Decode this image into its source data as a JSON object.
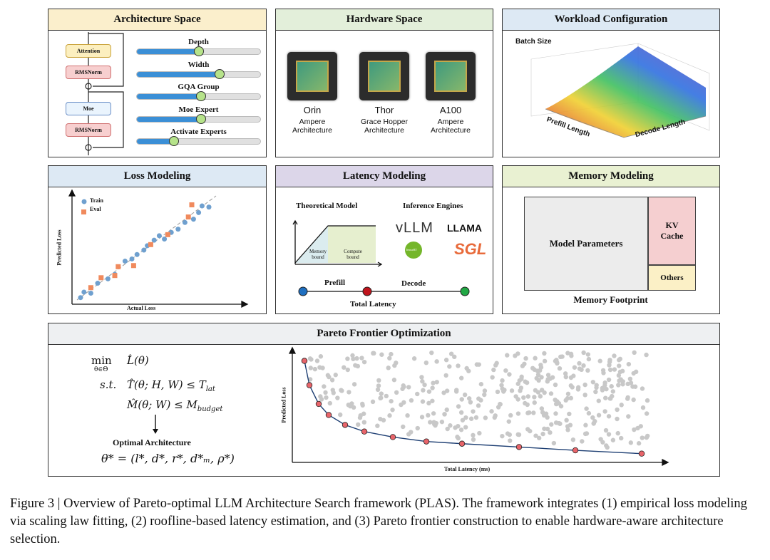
{
  "panels": {
    "architecture": {
      "title": "Architecture Space",
      "blocks": [
        "Attention",
        "RMSNorm",
        "Moe",
        "RMSNorm"
      ],
      "sliders": [
        {
          "label": "Depth",
          "value": 0.5
        },
        {
          "label": "Width",
          "value": 0.67
        },
        {
          "label": "GQA Group",
          "value": 0.52
        },
        {
          "label": "Moe Expert",
          "value": 0.52
        },
        {
          "label": "Activate Experts",
          "value": 0.3
        }
      ]
    },
    "hardware": {
      "title": "Hardware Space",
      "chips": [
        {
          "name": "Orin",
          "arch": "Ampere Architecture"
        },
        {
          "name": "Thor",
          "arch": "Grace Hopper Architecture"
        },
        {
          "name": "A100",
          "arch": "Ampere Architecture"
        }
      ]
    },
    "workload": {
      "title": "Workload Configuration",
      "z_label": "Batch Size",
      "x_label": "Prefill Length",
      "y_label": "Decode Length"
    },
    "loss": {
      "title": "Loss Modeling",
      "xlabel": "Actual Loss",
      "ylabel": "Predicted Loss",
      "legend": [
        "Train",
        "Eval"
      ]
    },
    "latency": {
      "title": "Latency Modeling",
      "theory_title": "Theoretical Model",
      "memory_bound": "Memory bound",
      "compute_bound": "Compute bound",
      "engines_title": "Inference Engines",
      "engines": [
        "vLLM",
        "LLAMA",
        "TensorRT",
        "SGL"
      ],
      "prefill": "Prefill",
      "decode": "Decode",
      "total": "Total Latency"
    },
    "memory": {
      "title": "Memory Modeling",
      "params": "Model Parameters",
      "kv": "KV Cache",
      "others": "Others",
      "footer": "Memory Footprint"
    },
    "pareto": {
      "title": "Pareto Frontier Optimization",
      "min": "min",
      "min_sub": "θ∈Θ",
      "objective": "L̂(θ)",
      "st": "s.t.",
      "c1": "T̂(θ; H, W) ≤ T",
      "c1_sub": "lat",
      "c2": "M̂(θ; W) ≤ M",
      "c2_sub": "budget",
      "optimal_label": "Optimal Architecture",
      "optimal": "θ* = (l*, d*, r*, d*ₘ, ρ*)",
      "xlabel": "Total Latency (ms)",
      "ylabel": "Predicted Loss"
    }
  },
  "chart_data": [
    {
      "type": "scatter",
      "xlabel": "Actual Loss",
      "ylabel": "Predicted Loss",
      "legend_placement": "top-left",
      "series": [
        {
          "name": "Train",
          "color": "#6fa0cf",
          "points": [
            [
              0.05,
              0.06
            ],
            [
              0.07,
              0.11
            ],
            [
              0.11,
              0.1
            ],
            [
              0.15,
              0.19
            ],
            [
              0.21,
              0.23
            ],
            [
              0.25,
              0.27
            ],
            [
              0.31,
              0.39
            ],
            [
              0.35,
              0.41
            ],
            [
              0.38,
              0.45
            ],
            [
              0.42,
              0.49
            ],
            [
              0.44,
              0.53
            ],
            [
              0.48,
              0.58
            ],
            [
              0.51,
              0.62
            ],
            [
              0.54,
              0.59
            ],
            [
              0.58,
              0.65
            ],
            [
              0.62,
              0.68
            ],
            [
              0.66,
              0.74
            ],
            [
              0.71,
              0.77
            ],
            [
              0.74,
              0.83
            ],
            [
              0.76,
              0.89
            ],
            [
              0.8,
              0.88
            ]
          ]
        },
        {
          "name": "Eval",
          "color": "#f08a5d",
          "points": [
            [
              0.11,
              0.15
            ],
            [
              0.17,
              0.24
            ],
            [
              0.25,
              0.26
            ],
            [
              0.27,
              0.34
            ],
            [
              0.36,
              0.35
            ],
            [
              0.46,
              0.54
            ],
            [
              0.56,
              0.63
            ],
            [
              0.68,
              0.79
            ],
            [
              0.7,
              0.9
            ]
          ]
        }
      ]
    },
    {
      "type": "scatter",
      "xlabel": "Total Latency (ms)",
      "ylabel": "Predicted Loss",
      "frontier_color": "#e8646a",
      "cloud_color": "#c8c8c8",
      "frontier": [
        [
          0.034,
          0.9
        ],
        [
          0.048,
          0.68
        ],
        [
          0.074,
          0.51
        ],
        [
          0.102,
          0.41
        ],
        [
          0.148,
          0.32
        ],
        [
          0.202,
          0.26
        ],
        [
          0.282,
          0.21
        ],
        [
          0.376,
          0.17
        ],
        [
          0.476,
          0.15
        ],
        [
          0.636,
          0.12
        ],
        [
          0.794,
          0.09
        ],
        [
          0.98,
          0.06
        ]
      ]
    }
  ],
  "caption": "Figure 3 | Overview of Pareto-optimal LLM Architecture Search framework (PLAS). The framework integrates (1) empirical loss modeling via scaling law fitting, (2) roofline-based latency estimation, and (3) Pareto frontier construction to enable hardware-aware architecture selection."
}
